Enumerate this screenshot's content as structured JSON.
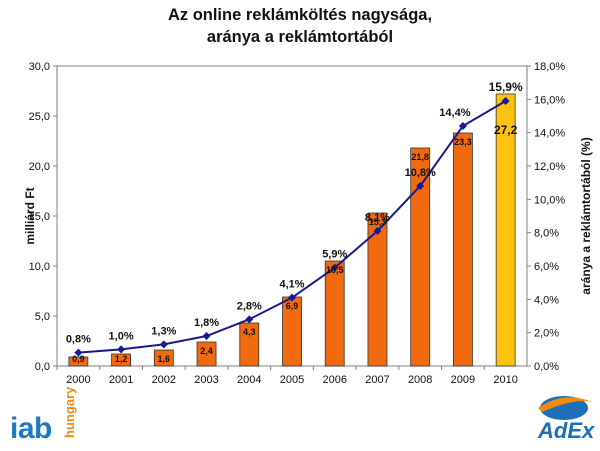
{
  "title_line1": "Az online reklámköltés nagysága,",
  "title_line2": "aránya a reklámtortából",
  "logos": {
    "iab": "iab",
    "iab_sub": "hungary",
    "adex": "AdEx"
  },
  "chart_data": {
    "type": "bar",
    "categories": [
      "2000",
      "2001",
      "2002",
      "2003",
      "2004",
      "2005",
      "2006",
      "2007",
      "2008",
      "2009",
      "2010"
    ],
    "series": [
      {
        "type": "bar",
        "axis": "left",
        "values": [
          0.9,
          1.2,
          1.6,
          2.4,
          4.3,
          6.9,
          10.5,
          15.3,
          21.8,
          23.3,
          27.2
        ],
        "value_labels": [
          "0,9",
          "1,2",
          "1,6",
          "2,4",
          "4,3",
          "6,9",
          "10,5",
          "15,3",
          "21,8",
          "23,3",
          "27,2"
        ],
        "color": "#f26a10",
        "highlight_color": "#ffc20e",
        "highlight_index": 10
      },
      {
        "type": "line",
        "axis": "right",
        "values": [
          0.8,
          1.0,
          1.3,
          1.8,
          2.8,
          4.1,
          5.9,
          8.1,
          10.8,
          14.4,
          15.9
        ],
        "value_labels": [
          "0,8%",
          "1,0%",
          "1,3%",
          "1,8%",
          "2,8%",
          "4,1%",
          "5,9%",
          "8,1%",
          "10,8%",
          "14,4%",
          "15,9%"
        ],
        "color": "#1a1a8c"
      }
    ],
    "ylabel": "milliárd Ft",
    "y2label": "aránya a reklámtortából (%)",
    "ylim": [
      0,
      30
    ],
    "y2lim": [
      0,
      18
    ],
    "yticks": [
      "0,0",
      "5,0",
      "10,0",
      "15,0",
      "20,0",
      "25,0",
      "30,0"
    ],
    "y2ticks": [
      "0,0%",
      "2,0%",
      "4,0%",
      "6,0%",
      "8,0%",
      "10,0%",
      "12,0%",
      "14,0%",
      "16,0%",
      "18,0%"
    ],
    "grid": false
  }
}
